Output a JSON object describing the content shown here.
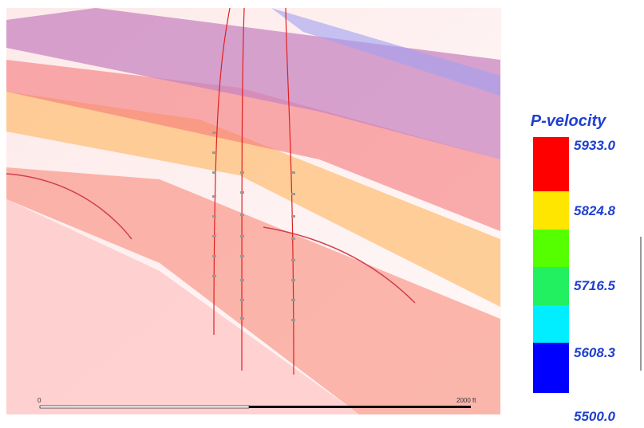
{
  "legend": {
    "title": "P-velocity",
    "labels": [
      "5933.0",
      "5824.8",
      "5716.5",
      "5608.3",
      "5500.0"
    ]
  },
  "scale_bar": {
    "start": "0",
    "end": "2000 ft"
  }
}
